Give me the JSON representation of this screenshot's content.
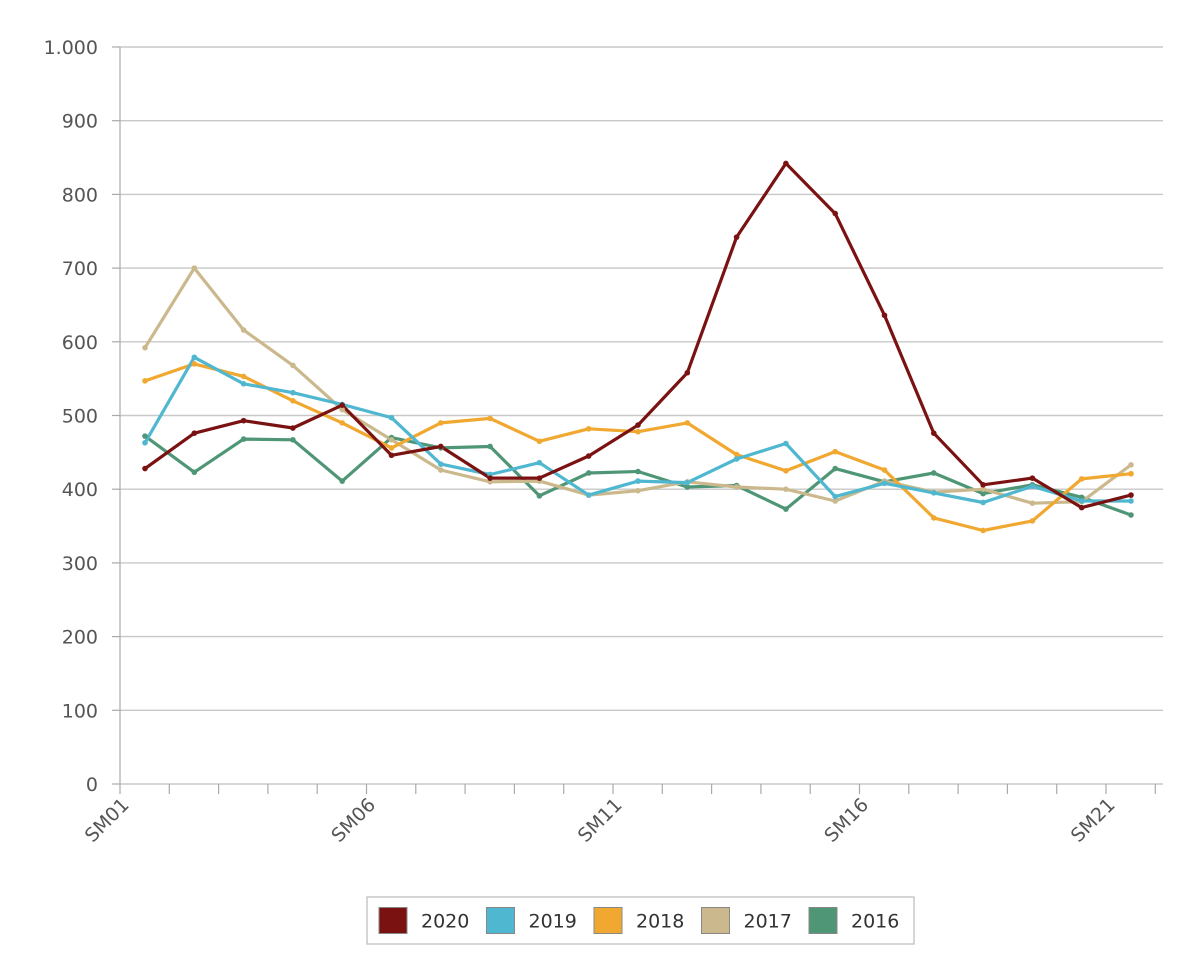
{
  "chart_data": {
    "type": "line",
    "title": "",
    "xlabel": "",
    "ylabel": "",
    "ylim": [
      0,
      1000
    ],
    "y_ticks": [
      {
        "value": 0,
        "label": "0"
      },
      {
        "value": 100,
        "label": "100"
      },
      {
        "value": 200,
        "label": "200"
      },
      {
        "value": 300,
        "label": "300"
      },
      {
        "value": 400,
        "label": "400"
      },
      {
        "value": 500,
        "label": "500"
      },
      {
        "value": 600,
        "label": "600"
      },
      {
        "value": 700,
        "label": "700"
      },
      {
        "value": 800,
        "label": "800"
      },
      {
        "value": 900,
        "label": "900"
      },
      {
        "value": 1000,
        "label": "1.000"
      }
    ],
    "x_categories": [
      "SM01",
      "SM02",
      "SM03",
      "SM04",
      "SM05",
      "SM06",
      "SM07",
      "SM08",
      "SM09",
      "SM10",
      "SM11",
      "SM12",
      "SM13",
      "SM14",
      "SM15",
      "SM16",
      "SM17",
      "SM18",
      "SM19",
      "SM20",
      "SM21"
    ],
    "x_tick_labels": [
      "SM01",
      "SM06",
      "SM11",
      "SM16",
      "SM21"
    ],
    "grid": true,
    "legend_position": "bottom",
    "series": [
      {
        "name": "2020",
        "color": "#7b1212",
        "values": [
          428,
          476,
          493,
          483,
          514,
          446,
          458,
          415,
          415,
          445,
          487,
          558,
          742,
          842,
          774,
          636,
          476,
          406,
          415,
          375,
          392
        ]
      },
      {
        "name": "2019",
        "color": "#4fb7cf",
        "values": [
          463,
          579,
          543,
          531,
          515,
          497,
          434,
          420,
          436,
          392,
          411,
          409,
          441,
          462,
          390,
          408,
          395,
          382,
          404,
          384,
          384
        ]
      },
      {
        "name": "2018",
        "color": "#f0a830",
        "values": [
          547,
          570,
          553,
          520,
          490,
          456,
          490,
          496,
          465,
          482,
          478,
          490,
          447,
          425,
          451,
          426,
          361,
          344,
          357,
          414,
          421
        ]
      },
      {
        "name": "2017",
        "color": "#cbb98d",
        "values": [
          592,
          700,
          616,
          568,
          508,
          467,
          426,
          410,
          411,
          392,
          398,
          410,
          403,
          400,
          384,
          411,
          396,
          400,
          381,
          383,
          433
        ]
      },
      {
        "name": "2016",
        "color": "#4f9676",
        "values": [
          472,
          423,
          468,
          467,
          411,
          470,
          456,
          458,
          391,
          422,
          424,
          403,
          405,
          373,
          428,
          410,
          422,
          394,
          406,
          389,
          365
        ]
      }
    ]
  }
}
